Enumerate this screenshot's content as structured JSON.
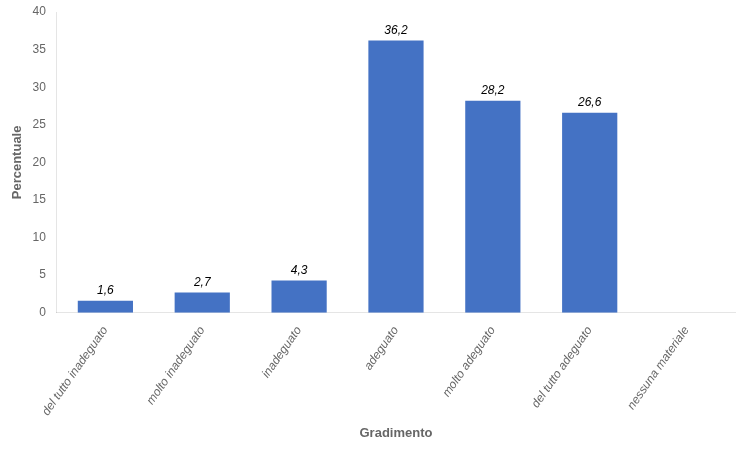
{
  "chart_data": {
    "type": "bar",
    "categories": [
      "del tutto inadeguato",
      "molto inadeguato",
      "inadeguato",
      "adeguato",
      "molto adeguato",
      "del tutto adeguato",
      "nessuna materiale"
    ],
    "values": [
      1.6,
      2.7,
      4.3,
      36.2,
      28.2,
      26.6,
      0.0
    ],
    "value_labels": [
      "1,6",
      "2,7",
      "4,3",
      "36,2",
      "28,2",
      "26,6",
      null
    ],
    "data_labels": true,
    "color": "#4472C4",
    "xlabel": "Gradimento",
    "ylabel": "Percentuale",
    "ylim": [
      0,
      40
    ],
    "yticks": [
      0,
      5,
      10,
      15,
      20,
      25,
      30,
      35,
      40
    ],
    "grid": false
  }
}
